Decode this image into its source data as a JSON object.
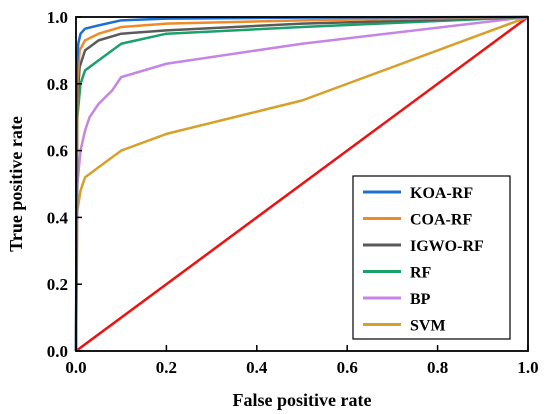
{
  "chart_data": {
    "type": "line",
    "title": "",
    "xlabel": "False positive rate",
    "ylabel": "True positive rate",
    "xlim": [
      0,
      1
    ],
    "ylim": [
      0,
      1
    ],
    "xticks": [
      "0.0",
      "0.2",
      "0.4",
      "0.6",
      "0.8",
      "1.0"
    ],
    "yticks": [
      "0.0",
      "0.2",
      "0.4",
      "0.6",
      "0.8",
      "1.0"
    ],
    "grid": false,
    "legend_position": "bottom-right",
    "series": [
      {
        "name": "KOA-RF",
        "color": "#1f6fd1",
        "points": [
          [
            0,
            0
          ],
          [
            0.002,
            0.85
          ],
          [
            0.005,
            0.92
          ],
          [
            0.01,
            0.95
          ],
          [
            0.02,
            0.965
          ],
          [
            0.05,
            0.975
          ],
          [
            0.1,
            0.99
          ],
          [
            0.2,
            0.995
          ],
          [
            0.5,
            0.998
          ],
          [
            1,
            1
          ]
        ]
      },
      {
        "name": "COA-RF",
        "color": "#ef8a27",
        "points": [
          [
            0,
            0
          ],
          [
            0.003,
            0.8
          ],
          [
            0.008,
            0.9
          ],
          [
            0.02,
            0.93
          ],
          [
            0.05,
            0.95
          ],
          [
            0.1,
            0.97
          ],
          [
            0.2,
            0.98
          ],
          [
            0.5,
            0.99
          ],
          [
            1,
            1
          ]
        ]
      },
      {
        "name": "IGWO-RF",
        "color": "#5a5a5a",
        "points": [
          [
            0,
            0
          ],
          [
            0.003,
            0.75
          ],
          [
            0.008,
            0.85
          ],
          [
            0.02,
            0.9
          ],
          [
            0.05,
            0.93
          ],
          [
            0.1,
            0.95
          ],
          [
            0.2,
            0.96
          ],
          [
            0.5,
            0.98
          ],
          [
            1,
            1
          ]
        ]
      },
      {
        "name": "RF",
        "color": "#1aa06b",
        "points": [
          [
            0,
            0
          ],
          [
            0.003,
            0.7
          ],
          [
            0.01,
            0.8
          ],
          [
            0.02,
            0.84
          ],
          [
            0.05,
            0.87
          ],
          [
            0.07,
            0.89
          ],
          [
            0.1,
            0.92
          ],
          [
            0.2,
            0.95
          ],
          [
            0.5,
            0.97
          ],
          [
            1,
            1
          ]
        ]
      },
      {
        "name": "BP",
        "color": "#c585e6",
        "points": [
          [
            0,
            0
          ],
          [
            0.003,
            0.5
          ],
          [
            0.01,
            0.6
          ],
          [
            0.02,
            0.66
          ],
          [
            0.03,
            0.7
          ],
          [
            0.05,
            0.74
          ],
          [
            0.08,
            0.78
          ],
          [
            0.1,
            0.82
          ],
          [
            0.2,
            0.86
          ],
          [
            0.5,
            0.92
          ],
          [
            1,
            1
          ]
        ]
      },
      {
        "name": "SVM",
        "color": "#d6a02a",
        "points": [
          [
            0,
            0
          ],
          [
            0.003,
            0.42
          ],
          [
            0.01,
            0.48
          ],
          [
            0.02,
            0.52
          ],
          [
            0.05,
            0.55
          ],
          [
            0.1,
            0.6
          ],
          [
            0.2,
            0.65
          ],
          [
            0.5,
            0.75
          ],
          [
            1,
            1
          ]
        ]
      }
    ],
    "reference_line": {
      "color": "#ee1111",
      "points": [
        [
          0,
          0
        ],
        [
          1,
          1
        ]
      ]
    }
  }
}
